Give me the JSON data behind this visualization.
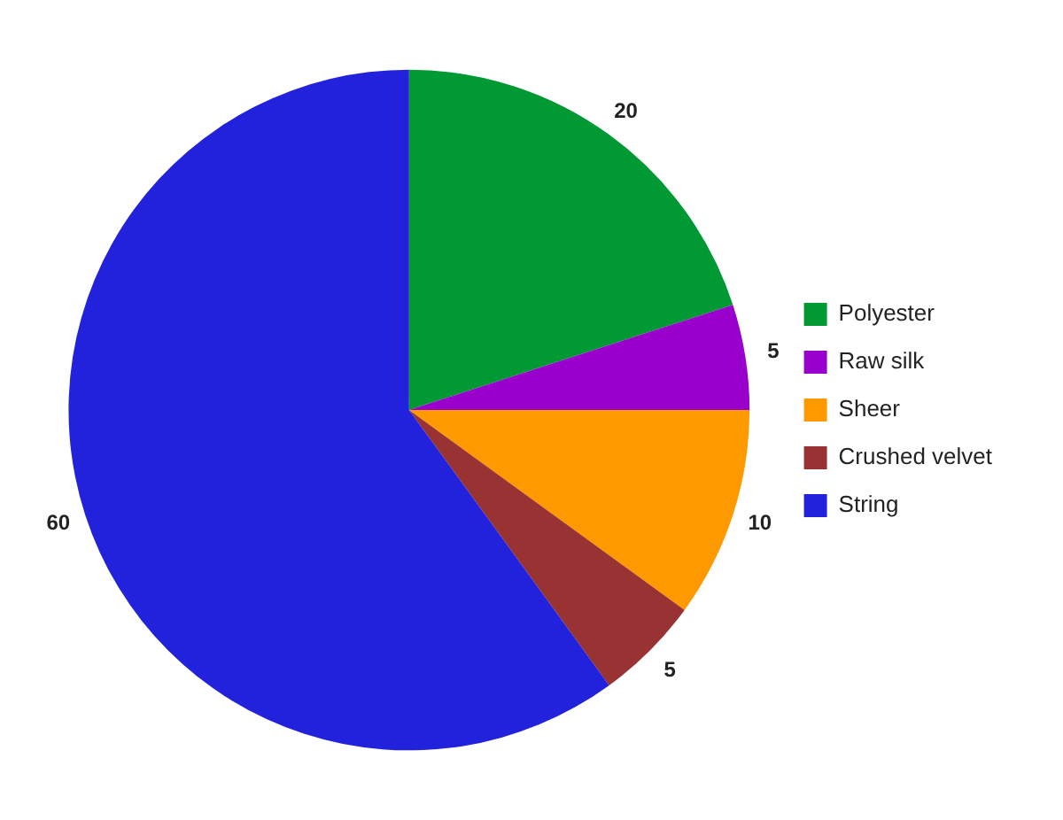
{
  "chart_data": {
    "type": "pie",
    "categories": [
      "Polyester",
      "Raw silk",
      "Sheer",
      "Crushed velvet",
      "String"
    ],
    "values": [
      20,
      5,
      10,
      5,
      60
    ],
    "colors": [
      "#009933",
      "#9900cc",
      "#ff9900",
      "#993333",
      "#2222dd"
    ],
    "legend": "right",
    "data_labels": true
  }
}
